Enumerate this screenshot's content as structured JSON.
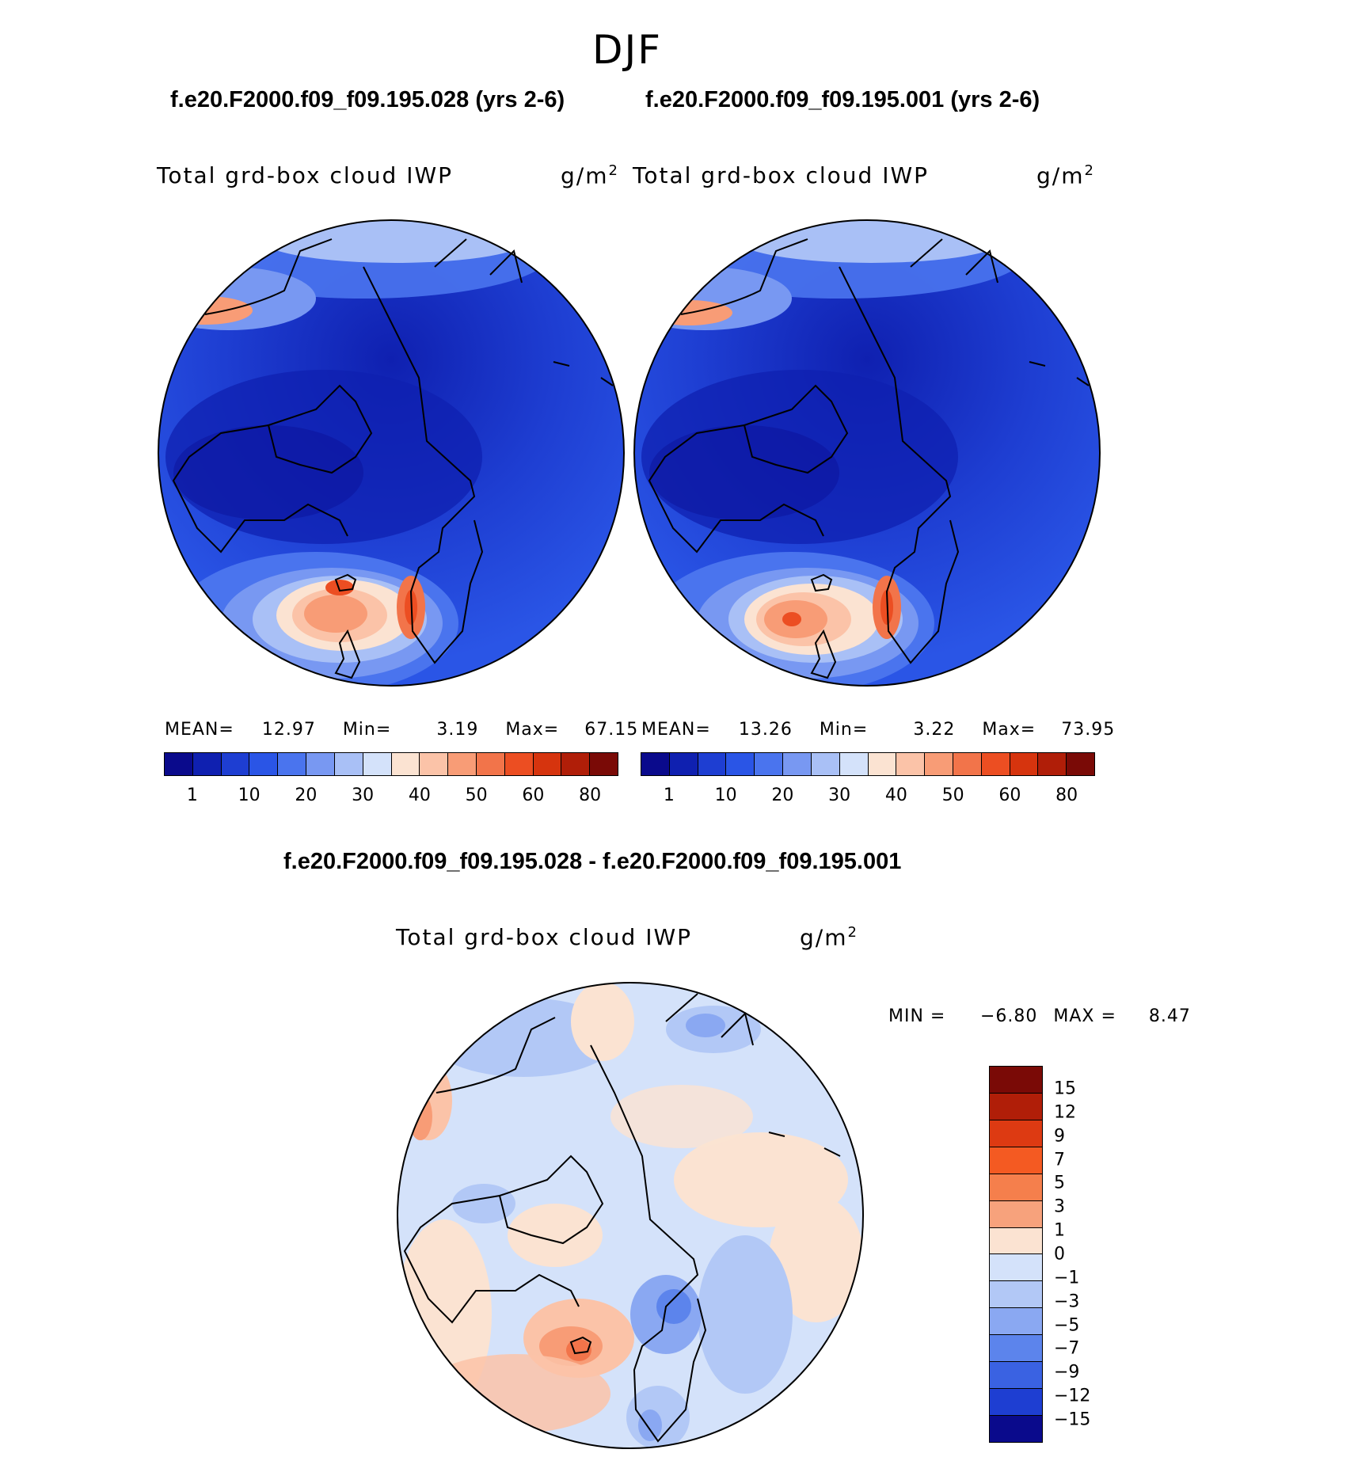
{
  "season": "DJF",
  "panel_left": {
    "case_title": "f.e20.F2000.f09_f09.195.028 (yrs 2-6)",
    "variable": "Total grd-box cloud IWP",
    "units": "g/m",
    "units_sup": "2",
    "mean_label": "MEAN=",
    "mean": "12.97",
    "min_label": "Min=",
    "min": "3.19",
    "max_label": "Max=",
    "max": "67.15"
  },
  "panel_right": {
    "case_title": "f.e20.F2000.f09_f09.195.001 (yrs 2-6)",
    "variable": "Total grd-box cloud IWP",
    "units": "g/m",
    "units_sup": "2",
    "mean_label": "MEAN=",
    "mean": "13.26",
    "min_label": "Min=",
    "min": "3.22",
    "max_label": "Max=",
    "max": "73.95"
  },
  "panel_diff": {
    "title": "f.e20.F2000.f09_f09.195.028 - f.e20.F2000.f09_f09.195.001",
    "variable": "Total grd-box cloud IWP",
    "units": "g/m",
    "units_sup": "2",
    "min_label": "MIN =",
    "min": "−6.80",
    "max_label": "MAX =",
    "max": "8.47"
  },
  "colorbar_abs": {
    "colors": [
      "#0a0a8c",
      "#0f20b0",
      "#1e3ed2",
      "#2a55e6",
      "#4a74ee",
      "#7898f2",
      "#a9c0f6",
      "#d4e2fa",
      "#fbe3d2",
      "#fbc3a8",
      "#f89c76",
      "#f2744a",
      "#ec4e22",
      "#d6340e",
      "#b01e08",
      "#7a0a06"
    ],
    "ticks": [
      "1",
      "10",
      "20",
      "30",
      "40",
      "50",
      "60",
      "80"
    ]
  },
  "colorbar_diff": {
    "colors": [
      "#7a0a06",
      "#b01e08",
      "#dd3a12",
      "#f45a22",
      "#f57f4c",
      "#f7a27c",
      "#fbe3d2",
      "#d4e2fa",
      "#b2c8f6",
      "#8aa8f2",
      "#5c84ec",
      "#3a62e2",
      "#1e3ed2",
      "#0a0a8c"
    ],
    "ticks": [
      "15",
      "12",
      "9",
      "7",
      "5",
      "3",
      "1",
      "0",
      "−1",
      "−3",
      "−5",
      "−7",
      "−9",
      "−12",
      "−15"
    ]
  }
}
